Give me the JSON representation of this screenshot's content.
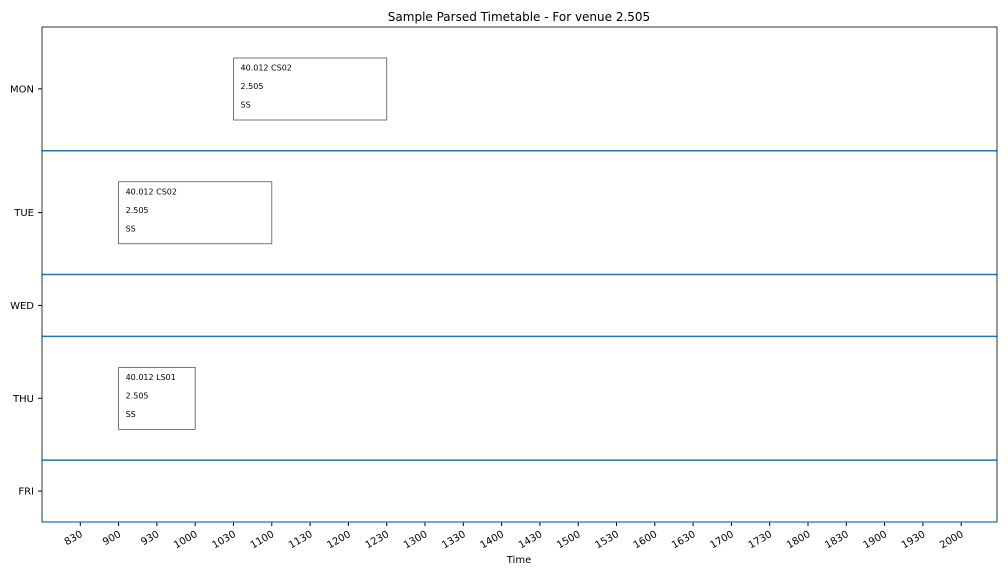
{
  "colors": {
    "background": "#ffffff",
    "axis": "#000000",
    "separator": "#1f77b4",
    "box_border": "#555555"
  },
  "chart_data": {
    "type": "timetable",
    "title": "Sample Parsed Timetable - For venue 2.505",
    "xlabel": "Time",
    "ylabel": "",
    "x_ticks": [
      "830",
      "900",
      "930",
      "1000",
      "1030",
      "1100",
      "1130",
      "1200",
      "1230",
      "1300",
      "1330",
      "1400",
      "1430",
      "1500",
      "1530",
      "1600",
      "1630",
      "1700",
      "1730",
      "1800",
      "1830",
      "1900",
      "1930",
      "2000"
    ],
    "x_range": [
      "800",
      "2030"
    ],
    "days": [
      {
        "label": "MON",
        "rows": 2
      },
      {
        "label": "TUE",
        "rows": 2
      },
      {
        "label": "WED",
        "rows": 1
      },
      {
        "label": "THU",
        "rows": 2
      },
      {
        "label": "FRI",
        "rows": 1
      }
    ],
    "sessions": [
      {
        "day": "MON",
        "start": "1030",
        "end": "1230",
        "lines": [
          "40.012 CS02",
          "2.505",
          "SS"
        ]
      },
      {
        "day": "TUE",
        "start": "900",
        "end": "1100",
        "lines": [
          "40.012 CS02",
          "2.505",
          "SS"
        ]
      },
      {
        "day": "THU",
        "start": "900",
        "end": "1000",
        "lines": [
          "40.012 LS01",
          "2.505",
          "SS"
        ]
      }
    ]
  }
}
